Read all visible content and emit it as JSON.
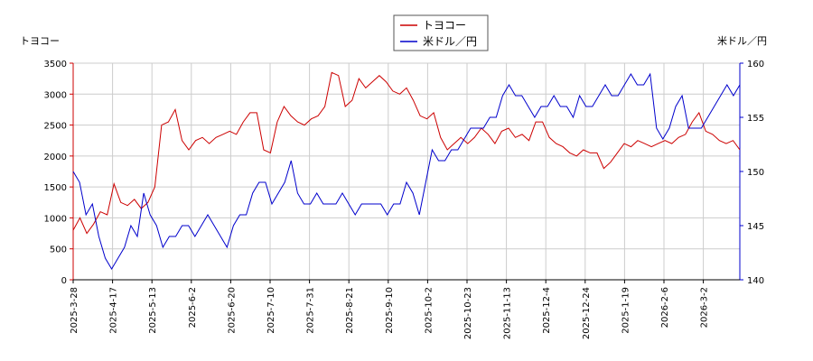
{
  "chart_data": {
    "type": "line",
    "y_left_label": "トヨコー",
    "y_right_label": "米ドル／円",
    "y_left_lim": [
      0,
      3500
    ],
    "y_left_ticks": [
      0,
      500,
      1000,
      1500,
      2000,
      2500,
      3000,
      3500
    ],
    "y_right_lim": [
      140,
      160
    ],
    "y_right_ticks": [
      140,
      145,
      150,
      155,
      160
    ],
    "x_tick_labels": [
      "2025-3-28",
      "2025-4-17",
      "2025-5-13",
      "2025-6-2",
      "2025-6-20",
      "2025-7-10",
      "2025-7-31",
      "2025-8-21",
      "2025-9-10",
      "2025-10-2",
      "2025-10-23",
      "2025-11-13",
      "2025-12-4",
      "2025-12-24",
      "2025-1-19",
      "2026-2-6",
      "2026-3-2"
    ],
    "grid": true,
    "legend_position": "top-center",
    "colors": {
      "toyoko": "#cc0000",
      "usdjpy": "#0000cc"
    },
    "series": [
      {
        "name": "トヨコー",
        "axis": "left",
        "color": "#cc0000",
        "values": [
          800,
          1000,
          750,
          900,
          1100,
          1050,
          1550,
          1250,
          1200,
          1300,
          1150,
          1250,
          1500,
          2500,
          2550,
          2750,
          2250,
          2100,
          2250,
          2300,
          2200,
          2300,
          2350,
          2400,
          2350,
          2550,
          2700,
          2700,
          2100,
          2050,
          2550,
          2800,
          2650,
          2550,
          2500,
          2600,
          2650,
          2800,
          3350,
          3300,
          2800,
          2900,
          3250,
          3100,
          3200,
          3300,
          3200,
          3050,
          3000,
          3100,
          2900,
          2650,
          2600,
          2700,
          2300,
          2100,
          2200,
          2300,
          2200,
          2300,
          2450,
          2350,
          2200,
          2400,
          2450,
          2300,
          2350,
          2250,
          2550,
          2550,
          2300,
          2200,
          2150,
          2050,
          2000,
          2100,
          2050,
          2050,
          1800,
          1900,
          2050,
          2200,
          2150,
          2250,
          2200,
          2150,
          2200,
          2250,
          2200,
          2300,
          2350,
          2550,
          2700,
          2400,
          2350,
          2250,
          2200,
          2250,
          2100
        ]
      },
      {
        "name": "米ドル／円",
        "axis": "right",
        "color": "#0000cc",
        "values": [
          150,
          149,
          146,
          147,
          144,
          142,
          141,
          142,
          143,
          145,
          144,
          148,
          146,
          145,
          143,
          144,
          144,
          145,
          145,
          144,
          145,
          146,
          145,
          144,
          143,
          145,
          146,
          146,
          148,
          149,
          149,
          147,
          148,
          149,
          151,
          148,
          147,
          147,
          148,
          147,
          147,
          147,
          148,
          147,
          146,
          147,
          147,
          147,
          147,
          146,
          147,
          147,
          149,
          148,
          146,
          149,
          152,
          151,
          151,
          152,
          152,
          153,
          154,
          154,
          154,
          155,
          155,
          157,
          158,
          157,
          157,
          156,
          155,
          156,
          156,
          157,
          156,
          156,
          155,
          157,
          156,
          156,
          157,
          158,
          157,
          157,
          158,
          159,
          158,
          158,
          159,
          154,
          153,
          154,
          156,
          157,
          154,
          154,
          154,
          155,
          156,
          157,
          158,
          157,
          158
        ]
      }
    ]
  }
}
